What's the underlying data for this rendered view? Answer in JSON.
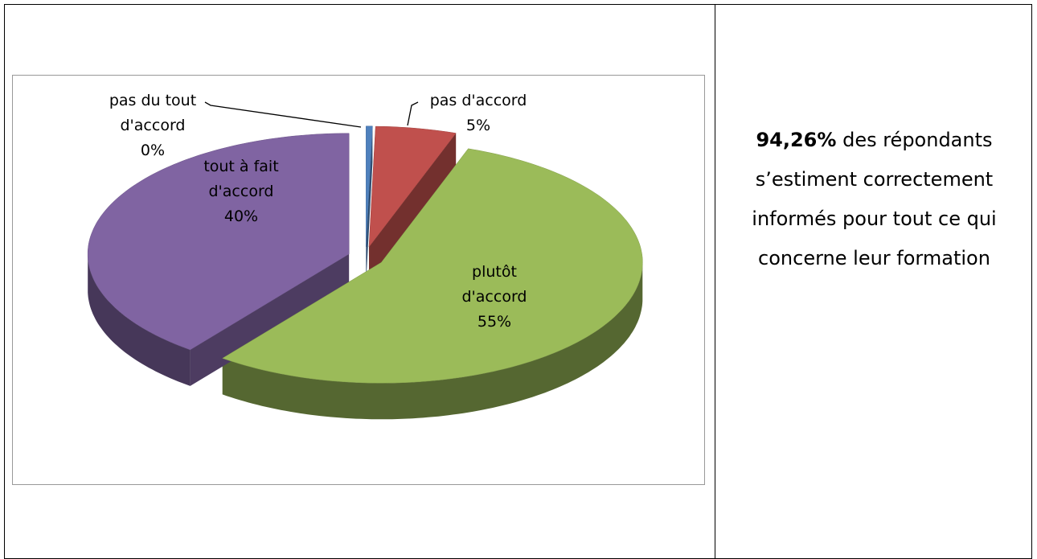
{
  "chart_data": {
    "type": "pie",
    "categories": [
      "pas du tout d'accord",
      "pas d'accord",
      "plutôt d'accord",
      "tout à fait d'accord"
    ],
    "values": [
      0.4,
      5,
      55,
      39.6
    ],
    "value_labels": [
      "0%",
      "5%",
      "55%",
      "40%"
    ],
    "colors": [
      "#4f81bd",
      "#c0504d",
      "#9bbb59",
      "#8064a2"
    ]
  },
  "note": {
    "highlight": "94,26%",
    "text": "des répondants s’estiment correctement informés pour tout ce qui concerne leur formation"
  }
}
